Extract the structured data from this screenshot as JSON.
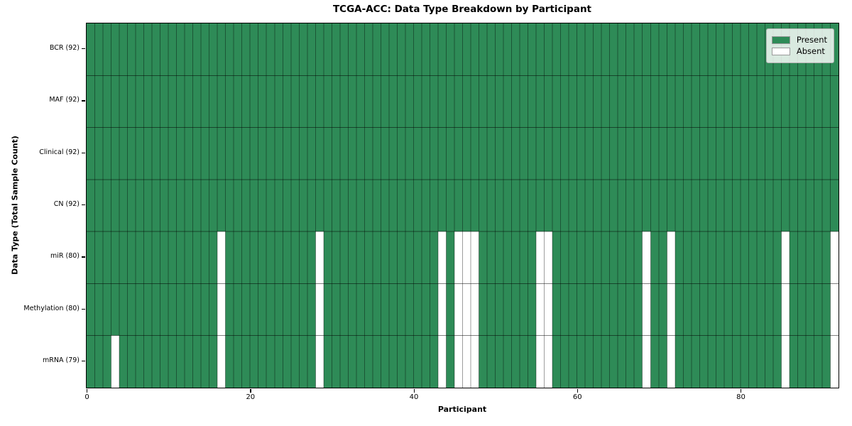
{
  "chart_data": {
    "type": "heatmap",
    "title": "TCGA-ACC: Data Type Breakdown by Participant",
    "xlabel": "Participant",
    "ylabel": "Data Type (Total Sample Count)",
    "x_ticks": [
      0,
      20,
      40,
      60,
      80
    ],
    "x_range": [
      0,
      92
    ],
    "n_participants": 92,
    "grid": true,
    "legend_position": "upper right",
    "rows": [
      {
        "label": "BCR (92)",
        "data_type": "BCR",
        "present_count": 92,
        "absent_participants": []
      },
      {
        "label": "MAF (92)",
        "data_type": "MAF",
        "present_count": 92,
        "absent_participants": []
      },
      {
        "label": "Clinical (92)",
        "data_type": "Clinical",
        "present_count": 92,
        "absent_participants": []
      },
      {
        "label": "CN (92)",
        "data_type": "CN",
        "present_count": 92,
        "absent_participants": []
      },
      {
        "label": "miR (80)",
        "data_type": "miR",
        "present_count": 80,
        "absent_participants": [
          16,
          28,
          43,
          45,
          46,
          47,
          55,
          56,
          68,
          71,
          85,
          91
        ]
      },
      {
        "label": "Methylation (80)",
        "data_type": "Methylation",
        "present_count": 80,
        "absent_participants": [
          16,
          28,
          43,
          45,
          46,
          47,
          55,
          56,
          68,
          71,
          85,
          91
        ]
      },
      {
        "label": "mRNA (79)",
        "data_type": "mRNA",
        "present_count": 79,
        "absent_participants": [
          3,
          16,
          28,
          43,
          45,
          46,
          47,
          55,
          56,
          68,
          71,
          85,
          91
        ]
      }
    ],
    "legend": [
      {
        "label": "Present",
        "color": "#2e8b57"
      },
      {
        "label": "Absent",
        "color": "#ffffff"
      }
    ],
    "colors": {
      "present": "#2e8b57",
      "absent": "#ffffff",
      "cell_grid": "rgba(0,0,0,0.38)",
      "row_divider": "rgba(0,0,0,0.5)",
      "plot_border": "#000000"
    }
  }
}
